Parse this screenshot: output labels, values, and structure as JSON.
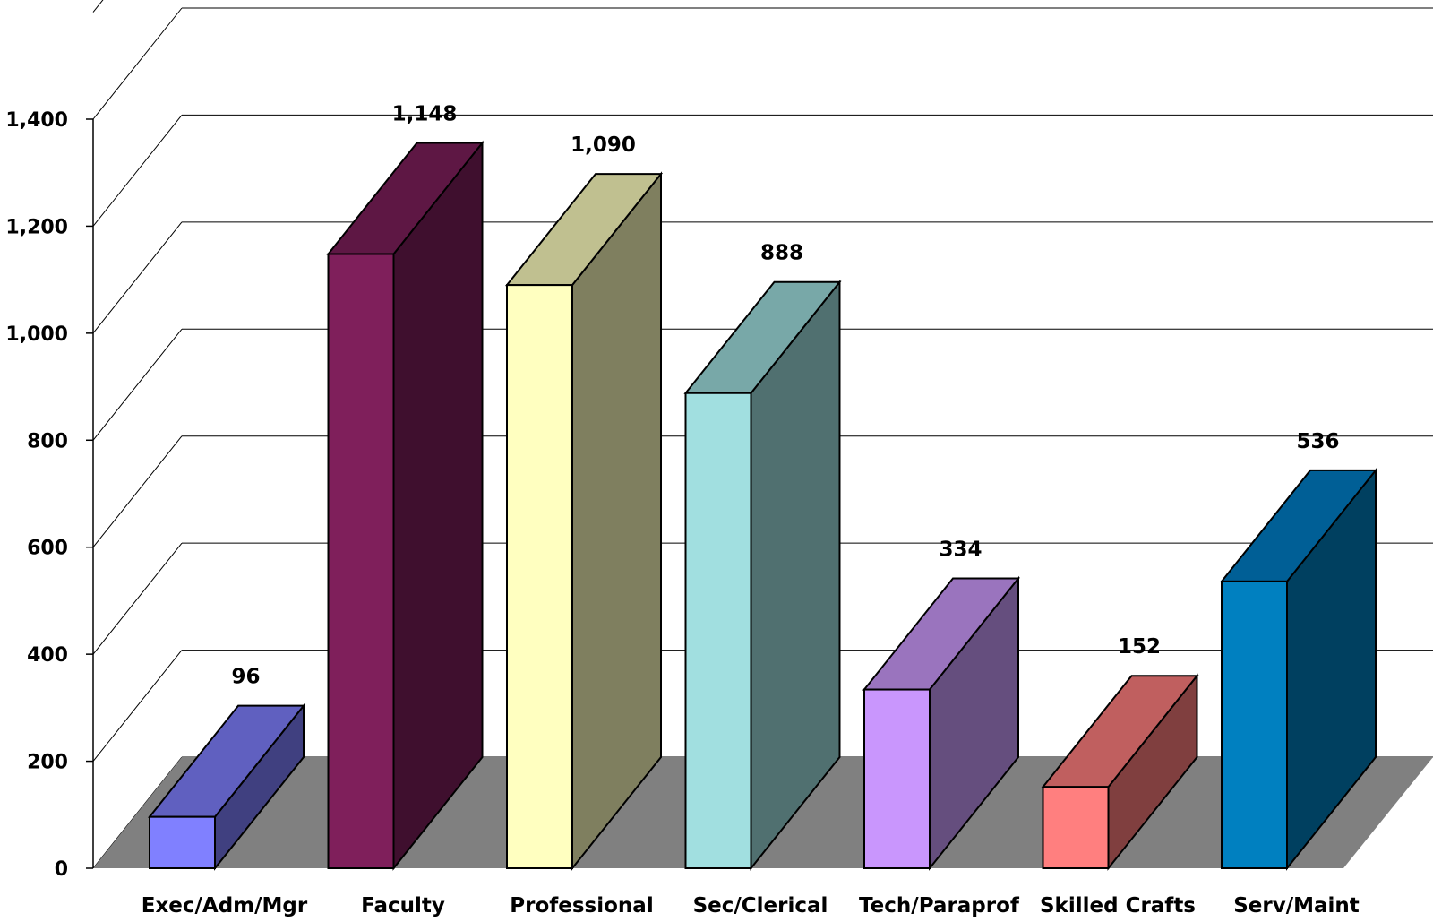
{
  "chart_data": {
    "type": "bar",
    "categories": [
      "Exec/Adm/Mgr",
      "Faculty",
      "Professional",
      "Sec/Clerical",
      "Tech/Paraprof",
      "Skilled Crafts",
      "Serv/Maint"
    ],
    "values": [
      96,
      1148,
      1090,
      888,
      334,
      152,
      536
    ],
    "value_labels": [
      "96",
      "1,148",
      "1,090",
      "888",
      "334",
      "152",
      "536"
    ],
    "ylim": [
      0,
      1400
    ],
    "y_ticks": [
      0,
      200,
      400,
      600,
      800,
      1000,
      1200,
      1400
    ],
    "y_tick_labels": [
      "0",
      "200",
      "400",
      "600",
      "800",
      "1,000",
      "1,200",
      "1,400"
    ],
    "grid": true,
    "style": "3d-bar",
    "colors": {
      "front": [
        "#8080ff",
        "#7f1f5b",
        "#ffffc0",
        "#a1dfe0",
        "#c996fd",
        "#ff7f7f",
        "#0080c0"
      ],
      "top": [
        "#6060c0",
        "#5e1744",
        "#c0c090",
        "#78a8a8",
        "#9a74be",
        "#c05f5f",
        "#005f96"
      ],
      "side": [
        "#404080",
        "#3f0f2e",
        "#7f7f5f",
        "#507070",
        "#654e7e",
        "#803f3f",
        "#004060"
      ],
      "floor": "#808080",
      "gridline": "#000000"
    }
  }
}
